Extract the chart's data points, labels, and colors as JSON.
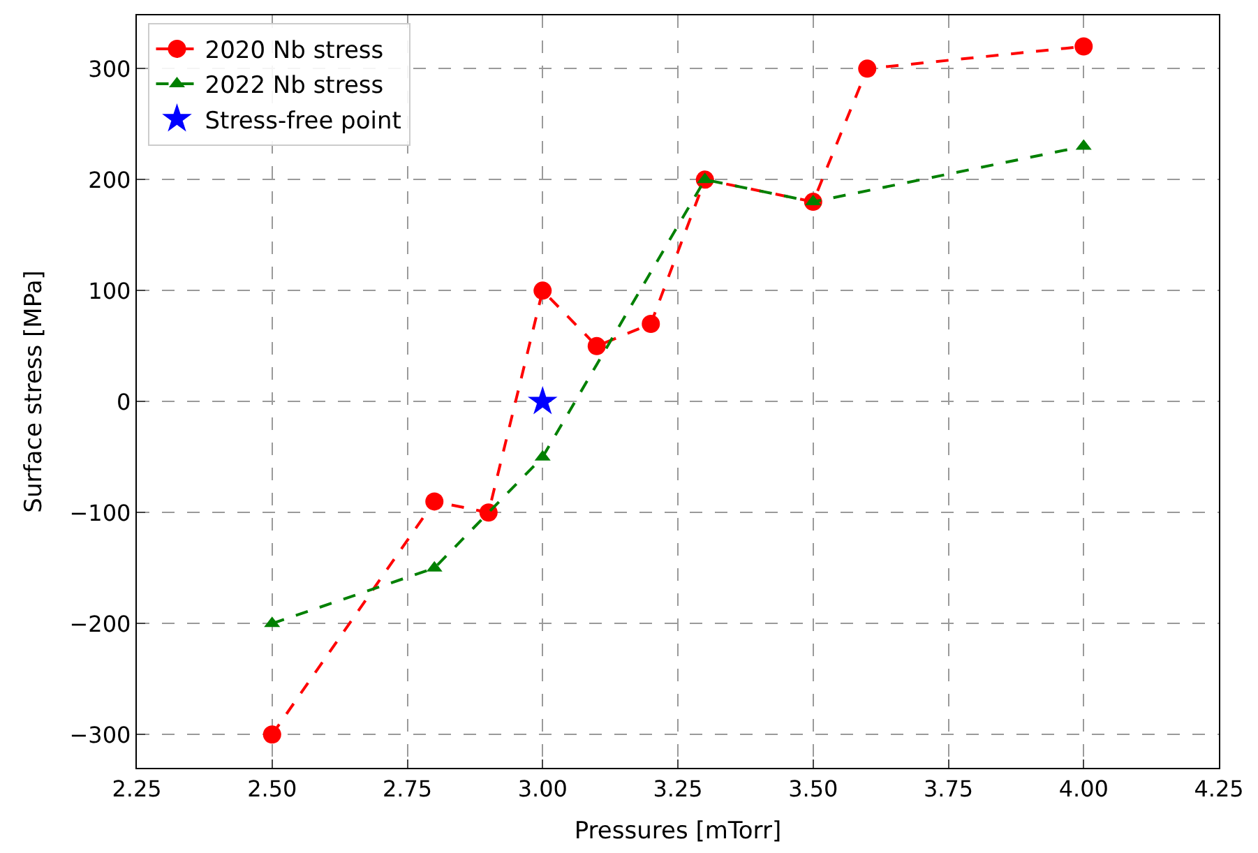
{
  "chart_data": {
    "type": "line",
    "xlabel": "Pressures [mTorr]",
    "ylabel": "Surface stress [MPa]",
    "series": [
      {
        "name": "2020 Nb stress",
        "color": "#ff0000",
        "marker": "circle",
        "line_style": "dashed",
        "x": [
          2.5,
          2.8,
          2.9,
          3.0,
          3.1,
          3.2,
          3.3,
          3.5,
          3.6,
          4.0
        ],
        "values": [
          -300,
          -90,
          -100,
          100,
          50,
          70,
          200,
          180,
          300,
          320
        ]
      },
      {
        "name": "2022 Nb stress",
        "color": "#008000",
        "type": "line",
        "marker": "triangle",
        "line_style": "dashed",
        "x": [
          2.5,
          2.8,
          3.0,
          3.3,
          3.5,
          4.0
        ],
        "values": [
          -200,
          -150,
          -50,
          200,
          180,
          230
        ]
      },
      {
        "name": "Stress-free point",
        "color": "#0000ff",
        "type": "scatter",
        "marker": "star",
        "x": [
          3.0
        ],
        "values": [
          0
        ]
      }
    ],
    "xlim": [
      2.25,
      4.25
    ],
    "xticks": [
      2.25,
      {
        "value": 2.5,
        "label": "2.50"
      },
      2.75,
      {
        "value": 3.0,
        "label": "3.00"
      },
      3.25,
      {
        "value": 3.5,
        "label": "3.50"
      },
      3.75,
      {
        "value": 4.0,
        "label": "4.00"
      },
      4.25
    ],
    "ylim": [
      -330,
      348
    ],
    "yticks": [
      -300,
      -200,
      -100,
      0,
      100,
      200,
      300
    ],
    "grid": true,
    "legend": "top left"
  }
}
